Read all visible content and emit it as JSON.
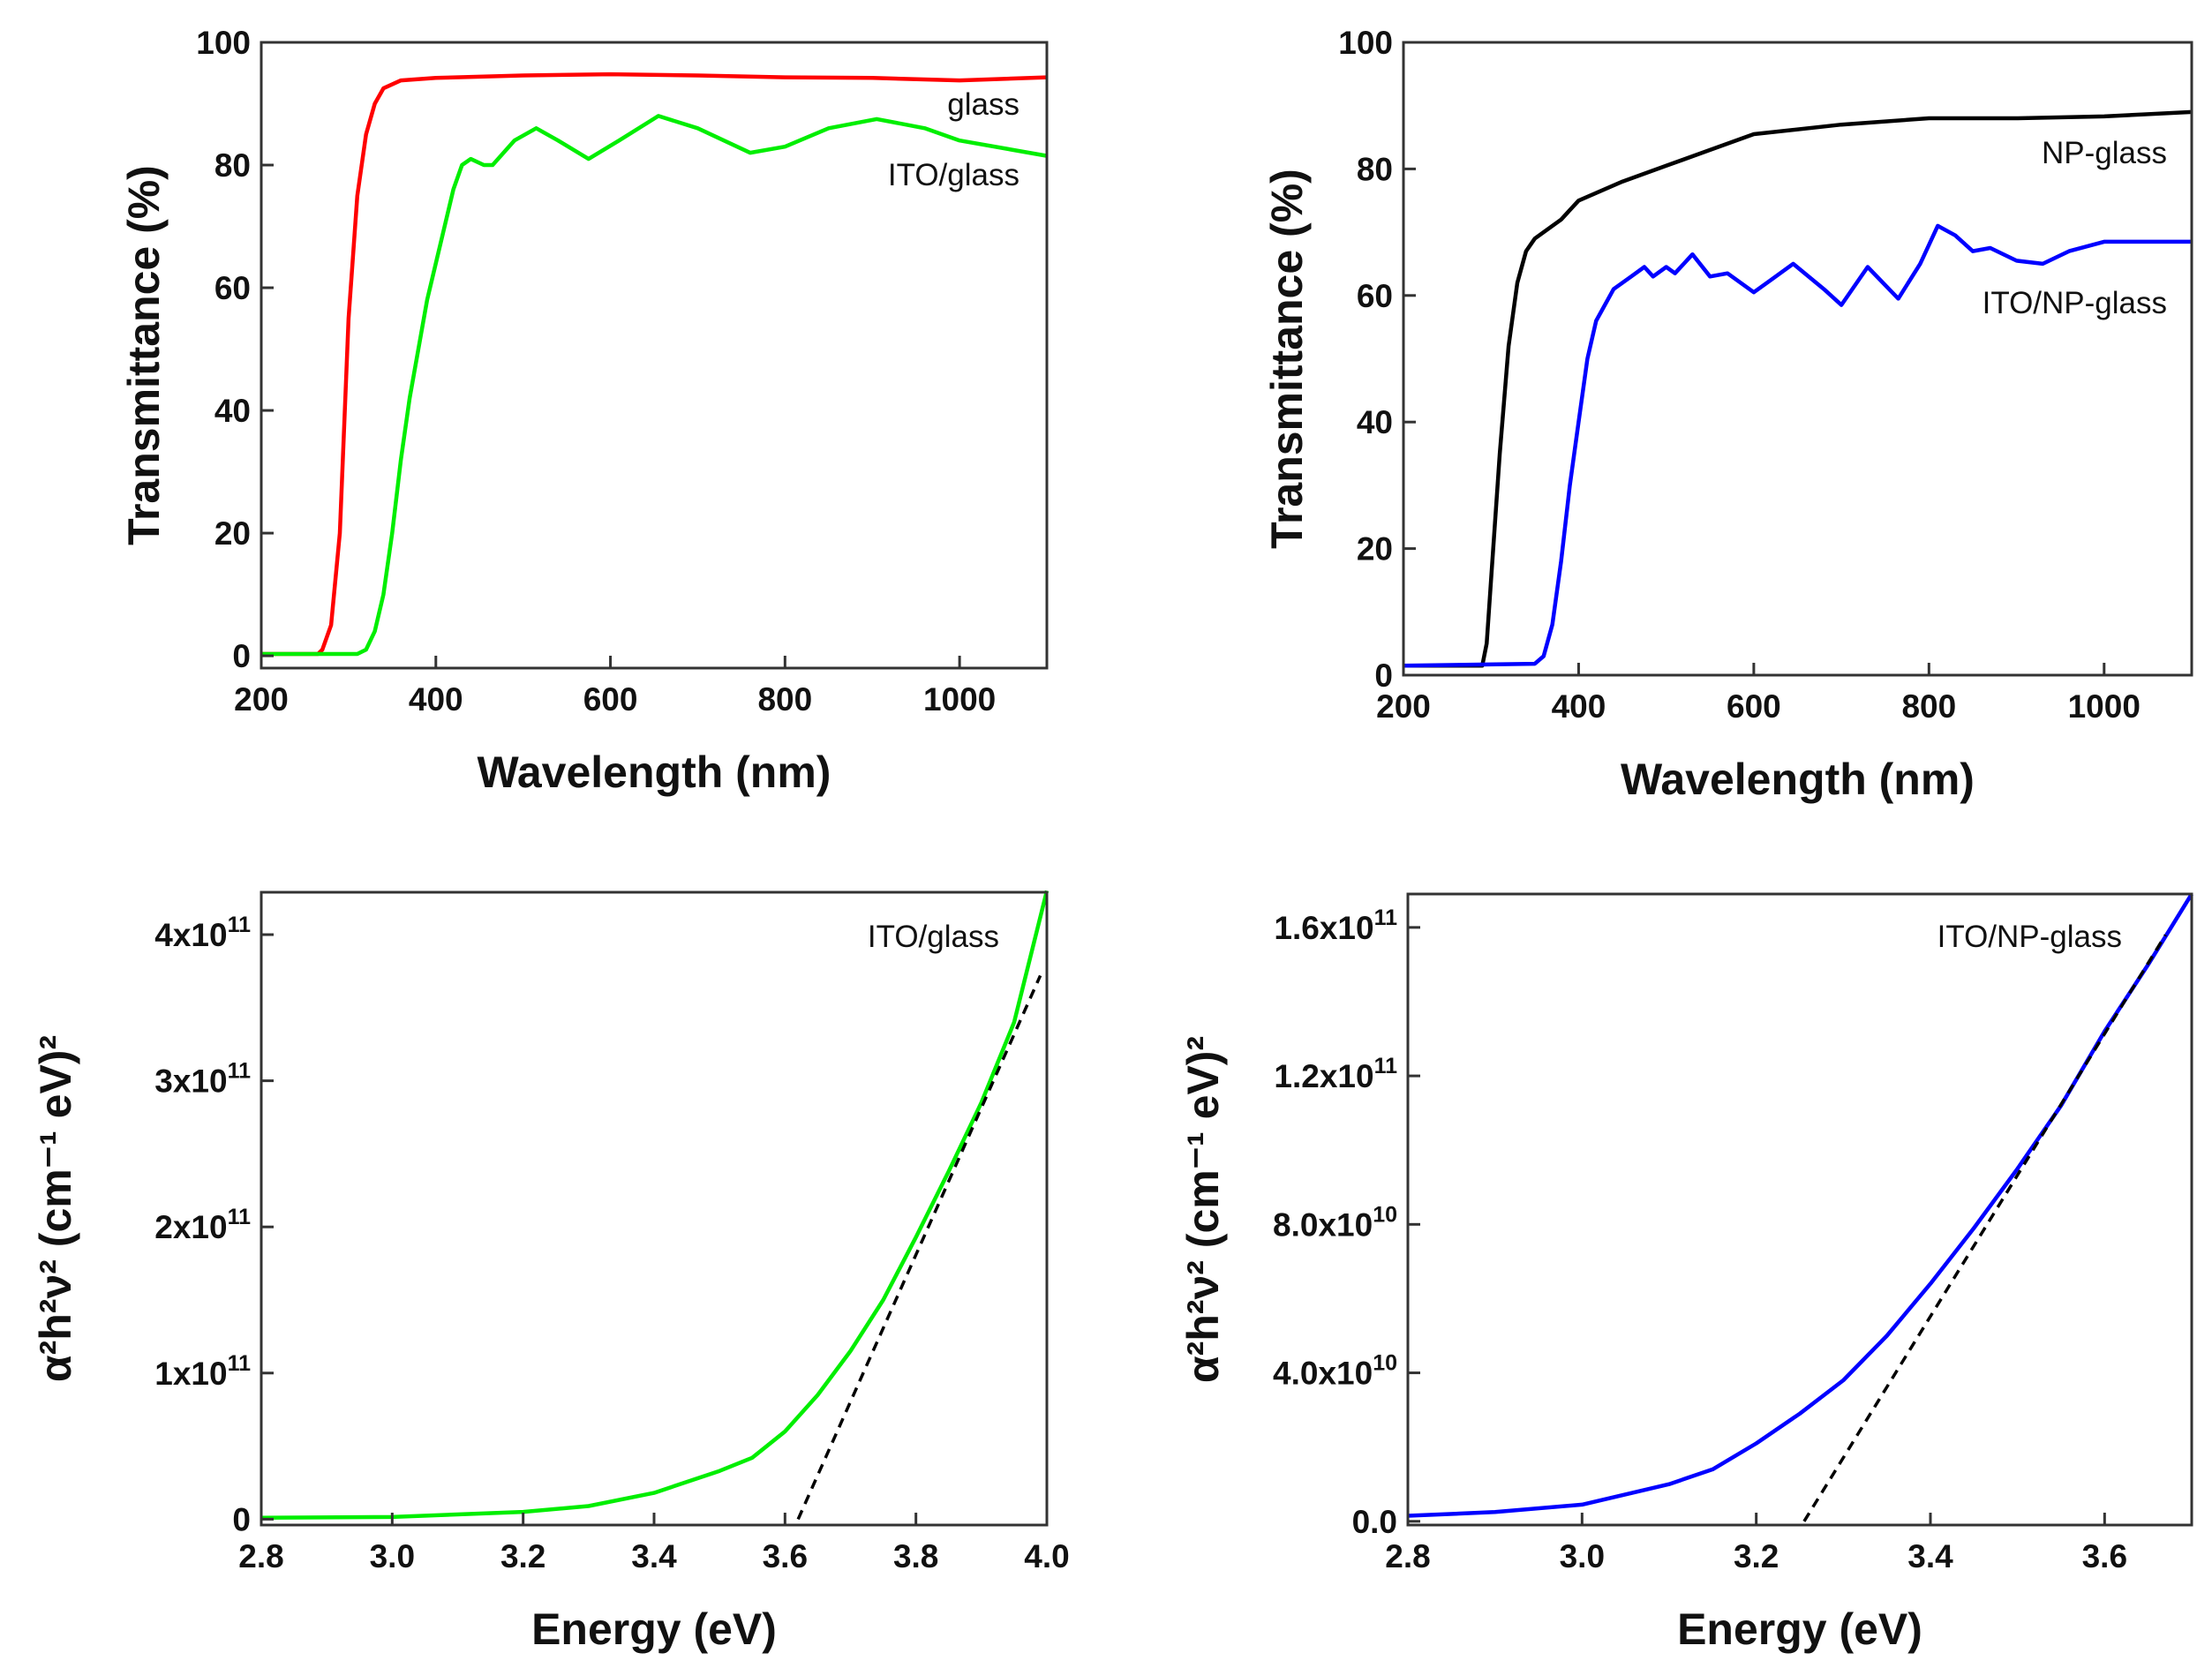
{
  "chart_data": [
    {
      "type": "line",
      "panel": "top-left",
      "xlabel": "Wavelength  (nm)",
      "ylabel": "Transmittance  (%)",
      "xlim": [
        200,
        1100
      ],
      "ylim": [
        -2,
        100
      ],
      "xticks": [
        200,
        400,
        600,
        800,
        1000
      ],
      "yticks": [
        0,
        20,
        40,
        60,
        80,
        100
      ],
      "series": [
        {
          "name": "glass",
          "color": "#ff0000",
          "x": [
            200,
            265,
            270,
            280,
            290,
            300,
            310,
            320,
            330,
            340,
            360,
            400,
            500,
            600,
            700,
            800,
            900,
            1000,
            1100
          ],
          "y": [
            0.3,
            0.3,
            1,
            5,
            20,
            55,
            75,
            85,
            90,
            92.5,
            93.8,
            94.2,
            94.6,
            94.8,
            94.6,
            94.3,
            94.2,
            93.8,
            94.3
          ]
        },
        {
          "name": "ITO/glass",
          "color": "#00ee00",
          "x": [
            200,
            310,
            320,
            330,
            340,
            350,
            360,
            370,
            380,
            390,
            400,
            410,
            420,
            430,
            440,
            455,
            465,
            490,
            515,
            540,
            575,
            610,
            655,
            700,
            760,
            800,
            850,
            905,
            960,
            1000,
            1100
          ],
          "y": [
            0.3,
            0.3,
            1,
            4,
            10,
            20,
            32,
            42,
            50,
            58,
            64,
            70,
            76,
            80,
            81,
            80,
            80,
            84,
            86,
            84,
            81,
            84,
            88,
            86,
            82,
            83,
            86,
            87.5,
            86,
            84,
            81.5
          ]
        }
      ],
      "annotations": [
        {
          "text": "glass",
          "series": "glass"
        },
        {
          "text": "ITO/glass",
          "series": "ITO/glass"
        }
      ]
    },
    {
      "type": "line",
      "panel": "top-right",
      "xlabel": "Wavelength  (nm)",
      "ylabel": "Transmittance  (%)",
      "xlim": [
        200,
        1100
      ],
      "ylim": [
        0,
        100
      ],
      "xticks": [
        200,
        400,
        600,
        800,
        1000
      ],
      "yticks": [
        0,
        20,
        40,
        60,
        80,
        100
      ],
      "series": [
        {
          "name": "NP-glass",
          "color": "#000000",
          "x": [
            200,
            290,
            295,
            300,
            310,
            320,
            330,
            340,
            350,
            370,
            380,
            400,
            450,
            500,
            550,
            600,
            700,
            800,
            900,
            1000,
            1100
          ],
          "y": [
            1.5,
            1.5,
            5,
            15,
            35,
            52,
            62,
            67,
            69,
            71,
            72,
            75,
            78,
            80.5,
            83,
            85.5,
            87,
            88,
            88,
            88.3,
            89
          ]
        },
        {
          "name": "ITO/NP-glass",
          "color": "#0000ff",
          "x": [
            200,
            350,
            360,
            370,
            380,
            390,
            400,
            410,
            420,
            440,
            460,
            475,
            485,
            500,
            510,
            530,
            550,
            570,
            600,
            620,
            645,
            680,
            700,
            730,
            765,
            790,
            810,
            830,
            850,
            870,
            900,
            930,
            960,
            1000,
            1100
          ],
          "y": [
            1.5,
            1.8,
            3,
            8,
            18,
            30,
            40,
            50,
            56,
            61,
            63,
            64.5,
            63,
            64.5,
            63.5,
            66.5,
            63,
            63.5,
            60.5,
            62.5,
            65,
            61,
            58.5,
            64.5,
            59.5,
            65,
            71,
            69.5,
            67,
            67.5,
            65.5,
            65,
            67,
            68.5,
            68.5
          ]
        }
      ],
      "annotations": [
        {
          "text": "NP-glass",
          "series": "NP-glass"
        },
        {
          "text": "ITO/NP-glass",
          "series": "ITO/NP-glass"
        }
      ]
    },
    {
      "type": "line",
      "panel": "bottom-left",
      "xlabel": "Energy  (eV)",
      "ylabel": "α²h²ν²  (cm⁻¹ eV)²",
      "xlim": [
        2.8,
        4.0
      ],
      "ylim": [
        -4000000000.0,
        429000000000.0
      ],
      "xticks": [
        2.8,
        3.0,
        3.2,
        3.4,
        3.6,
        3.8,
        4.0
      ],
      "xtick_labels": [
        "2.8",
        "3.0",
        "3.2",
        "3.4",
        "3.6",
        "3.8",
        "4.0"
      ],
      "yticks": [
        0,
        100000000000.0,
        200000000000.0,
        300000000000.0,
        400000000000.0
      ],
      "ytick_labels": [
        {
          "base": "0",
          "exp": ""
        },
        {
          "base": "1x10",
          "exp": "11"
        },
        {
          "base": "2x10",
          "exp": "11"
        },
        {
          "base": "3x10",
          "exp": "11"
        },
        {
          "base": "4x10",
          "exp": "11"
        }
      ],
      "series": [
        {
          "name": "ITO/glass",
          "color": "#00ee00",
          "x": [
            2.8,
            3.0,
            3.2,
            3.3,
            3.4,
            3.5,
            3.55,
            3.6,
            3.65,
            3.7,
            3.75,
            3.8,
            3.85,
            3.9,
            3.95,
            4.0
          ],
          "y": [
            1000000000.0,
            1500000000.0,
            5000000000.0,
            9000000000.0,
            18000000000.0,
            33000000000.0,
            42000000000.0,
            60000000000.0,
            85000000000.0,
            115000000000.0,
            150000000000.0,
            193000000000.0,
            238000000000.0,
            285000000000.0,
            340000000000.0,
            430000000000.0
          ]
        },
        {
          "name": "linear fit",
          "color": "#000000",
          "dashed": true,
          "x": [
            3.62,
            3.99
          ],
          "y": [
            0,
            372000000000.0
          ]
        }
      ],
      "annotations": [
        {
          "text": "ITO/glass"
        }
      ]
    },
    {
      "type": "line",
      "panel": "bottom-right",
      "xlabel": "Energy  (eV)",
      "ylabel": "α²h²ν²  (cm⁻¹ eV)²",
      "xlim": [
        2.8,
        3.7
      ],
      "ylim": [
        -1000000000.0,
        169000000000.0
      ],
      "xticks": [
        2.8,
        3.0,
        3.2,
        3.4,
        3.6
      ],
      "xtick_labels": [
        "2.8",
        "3.0",
        "3.2",
        "3.4",
        "3.6"
      ],
      "yticks": [
        0,
        40000000000.0,
        80000000000.0,
        120000000000.0,
        160000000000.0
      ],
      "ytick_labels": [
        {
          "base": "0.0",
          "exp": ""
        },
        {
          "base": "4.0x10",
          "exp": "10"
        },
        {
          "base": "8.0x10",
          "exp": "10"
        },
        {
          "base": "1.2x10",
          "exp": "11"
        },
        {
          "base": "1.6x10",
          "exp": "11"
        }
      ],
      "series": [
        {
          "name": "ITO/NP-glass",
          "color": "#0000ff",
          "x": [
            2.8,
            2.9,
            3.0,
            3.1,
            3.15,
            3.2,
            3.25,
            3.3,
            3.35,
            3.4,
            3.45,
            3.5,
            3.55,
            3.6,
            3.65,
            3.7
          ],
          "y": [
            1500000000.0,
            2500000000.0,
            4500000000.0,
            10000000000.0,
            14000000000.0,
            21000000000.0,
            29000000000.0,
            38000000000.0,
            50000000000.0,
            64000000000.0,
            79000000000.0,
            95000000000.0,
            112000000000.0,
            132000000000.0,
            150000000000.0,
            169000000000.0
          ]
        },
        {
          "name": "linear fit",
          "color": "#000000",
          "dashed": true,
          "x": [
            3.255,
            3.67
          ],
          "y": [
            0,
            158000000000.0
          ]
        }
      ],
      "annotations": [
        {
          "text": "ITO/NP-glass"
        }
      ]
    }
  ]
}
